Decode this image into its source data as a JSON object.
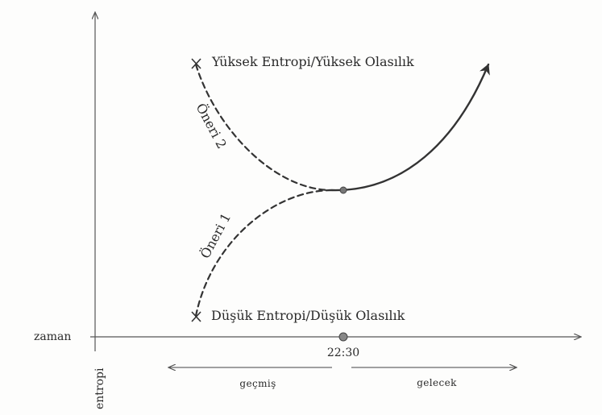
{
  "axes": {
    "x_label": "zaman",
    "y_label": "entropi"
  },
  "time_marker": "22:30",
  "states": {
    "high": "Yüksek Entropi/Yüksek Olasılık",
    "low": "Düşük Entropi/Düşük Olasılık"
  },
  "proposals": {
    "p2": "Öneri 2",
    "p1": "Öneri 1"
  },
  "timeline": {
    "past": "geçmiş",
    "future": "gelecek"
  }
}
